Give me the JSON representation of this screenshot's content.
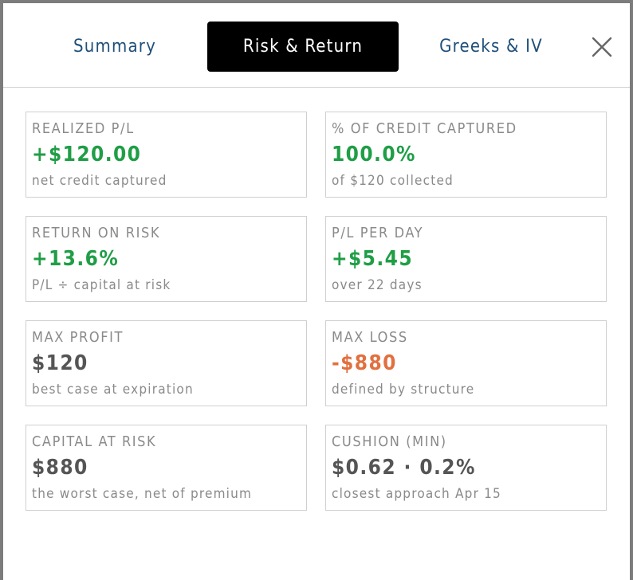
{
  "tabs": [
    {
      "label": "Summary",
      "active": false
    },
    {
      "label": "Risk & Return",
      "active": true
    },
    {
      "label": "Greeks & IV",
      "active": false
    }
  ],
  "close_icon": "close-icon",
  "colors": {
    "positive": "#1f9e46",
    "negative": "#e2703f",
    "neutral": "#555555",
    "tab_text": "#1f4f7a",
    "active_tab_bg": "#000000"
  },
  "cards": {
    "realized_pl": {
      "label": "REALIZED P/L",
      "value": "+$120.00",
      "sub": "net credit captured",
      "tone": "positive"
    },
    "credit_captured": {
      "label": "% OF CREDIT CAPTURED",
      "value": "100.0%",
      "sub": "of $120 collected",
      "tone": "positive"
    },
    "return_on_risk": {
      "label": "RETURN ON RISK",
      "value": "+13.6%",
      "sub": "P/L ÷ capital at risk",
      "tone": "positive"
    },
    "pl_per_day": {
      "label": "P/L PER DAY",
      "value": "+$5.45",
      "sub": "over 22 days",
      "tone": "positive"
    },
    "max_profit": {
      "label": "MAX PROFIT",
      "value": "$120",
      "sub": "best case at expiration",
      "tone": "neutral"
    },
    "max_loss": {
      "label": "MAX LOSS",
      "value": "-$880",
      "sub": "defined by structure",
      "tone": "negative"
    },
    "capital_at_risk": {
      "label": "CAPITAL AT RISK",
      "value": "$880",
      "sub": "the worst case, net of premium",
      "tone": "neutral"
    },
    "cushion_min": {
      "label": "CUSHION (MIN)",
      "value": "$0.62 · 0.2%",
      "sub": "closest approach Apr 15",
      "tone": "neutral"
    }
  }
}
